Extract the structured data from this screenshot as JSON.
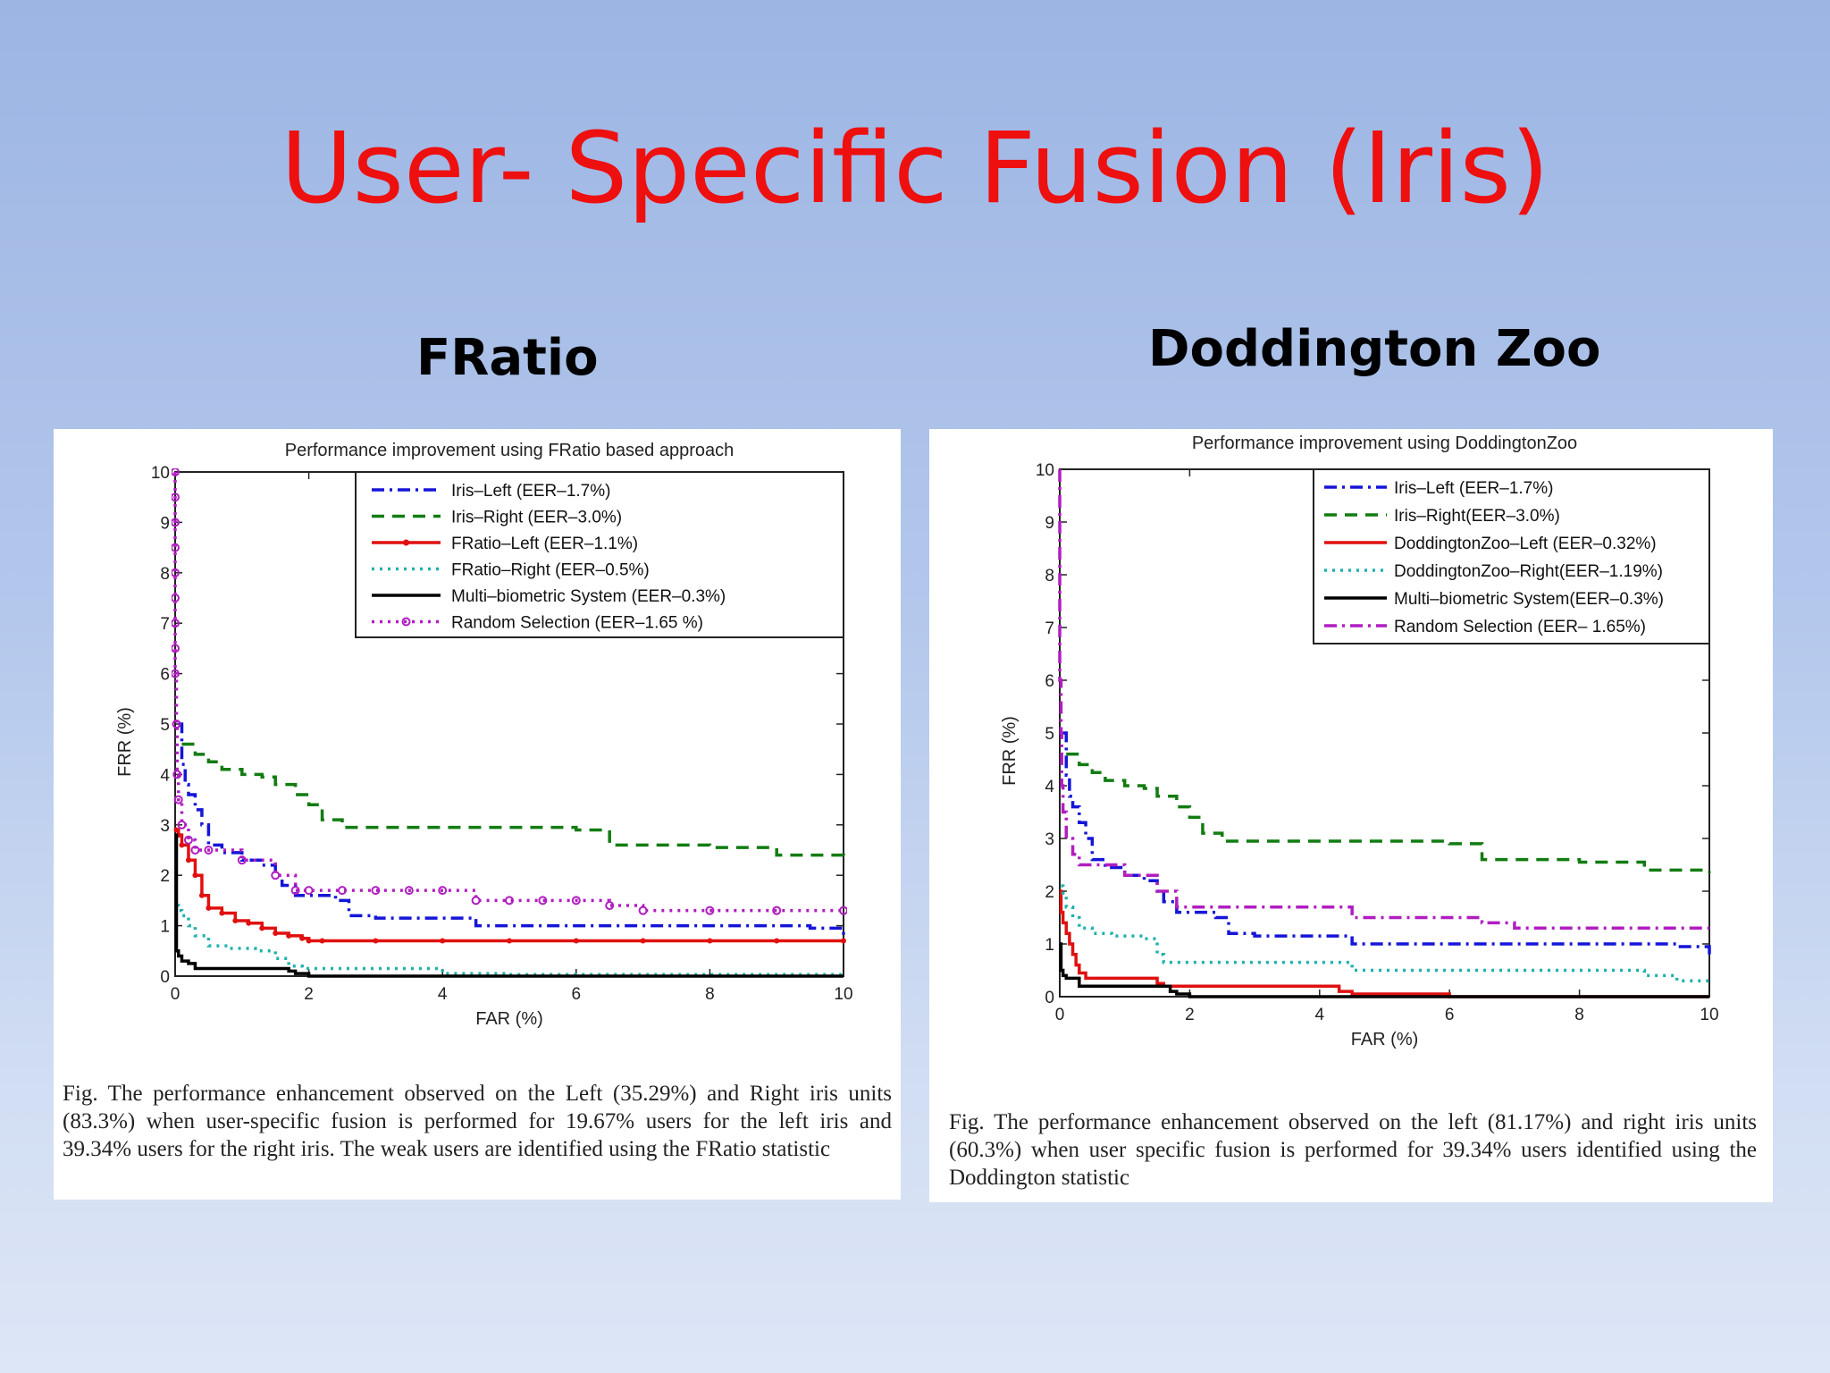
{
  "slide": {
    "title": "User- Specific Fusion (Iris)",
    "left_heading": "FRatio",
    "right_heading": "Doddington Zoo"
  },
  "captions": {
    "left": "Fig.     The performance enhancement observed on the Left (35.29%) and Right iris units (83.3%) when user-specific fusion is performed for 19.67% users for the left iris and 39.34% users for the right iris. The weak users are identified using the FRatio statistic",
    "right": "Fig.     The performance enhancement observed on the left (81.17%) and right iris units (60.3%) when user specific fusion is performed for 39.34% users identified using the Doddington statistic"
  },
  "chart_data": [
    {
      "type": "line",
      "title": "Performance improvement using FRatio based approach",
      "xlabel": "FAR (%)",
      "ylabel": "FRR (%)",
      "xlim": [
        0,
        10
      ],
      "ylim": [
        0,
        10
      ],
      "xticks": [
        "0",
        "2",
        "4",
        "6",
        "8",
        "10"
      ],
      "yticks": [
        "0",
        "1",
        "2",
        "3",
        "4",
        "5",
        "6",
        "7",
        "8",
        "9",
        "10"
      ],
      "grid": false,
      "legend_position": "top-right",
      "series": [
        {
          "name": "Iris–Left (EER–1.7%)",
          "color": "#1515d8",
          "dash": "dashdot",
          "marker": "none",
          "x": [
            0.05,
            0.1,
            0.15,
            0.2,
            0.3,
            0.4,
            0.5,
            0.7,
            1.0,
            1.2,
            1.3,
            1.5,
            1.6,
            1.8,
            2.0,
            2.2,
            2.4,
            2.6,
            3.0,
            3.5,
            4.0,
            4.5,
            5.0,
            6.0,
            7.0,
            8.0,
            9.0,
            9.5,
            10.0
          ],
          "y": [
            5.0,
            4.2,
            3.8,
            3.6,
            3.3,
            3.0,
            2.6,
            2.45,
            2.3,
            2.3,
            2.2,
            2.0,
            1.8,
            1.6,
            1.6,
            1.6,
            1.5,
            1.2,
            1.15,
            1.15,
            1.15,
            1.0,
            1.0,
            1.0,
            1.0,
            1.0,
            1.0,
            0.95,
            0.8
          ]
        },
        {
          "name": "Iris–Right (EER–3.0%)",
          "color": "#127c12",
          "dash": "dashed",
          "marker": "none",
          "x": [
            0.1,
            0.3,
            0.5,
            0.7,
            1.0,
            1.3,
            1.5,
            1.8,
            2.0,
            2.2,
            2.5,
            3.0,
            4.0,
            5.0,
            5.5,
            6.0,
            6.5,
            7.0,
            8.0,
            9.0,
            10.0
          ],
          "y": [
            4.6,
            4.4,
            4.25,
            4.1,
            4.0,
            3.95,
            3.8,
            3.6,
            3.4,
            3.1,
            2.95,
            2.95,
            2.95,
            2.95,
            2.95,
            2.9,
            2.6,
            2.6,
            2.55,
            2.4,
            2.35
          ]
        },
        {
          "name": "FRatio–Left (EER–1.1%)",
          "color": "#e01010",
          "dash": "solid",
          "marker": "dot",
          "x": [
            0.02,
            0.05,
            0.1,
            0.2,
            0.3,
            0.4,
            0.5,
            0.7,
            0.9,
            1.1,
            1.3,
            1.5,
            1.7,
            1.9,
            2.0,
            2.2,
            3.0,
            4.0,
            5.0,
            6.0,
            7.0,
            8.0,
            9.0,
            10.0
          ],
          "y": [
            2.9,
            2.8,
            2.6,
            2.3,
            2.0,
            1.6,
            1.35,
            1.25,
            1.1,
            1.05,
            0.95,
            0.85,
            0.8,
            0.75,
            0.7,
            0.7,
            0.7,
            0.7,
            0.7,
            0.7,
            0.7,
            0.7,
            0.7,
            0.7
          ]
        },
        {
          "name": "FRatio–Right (EER–0.5%)",
          "color": "#20b0b0",
          "dash": "dotted",
          "marker": "none",
          "x": [
            0.02,
            0.05,
            0.1,
            0.2,
            0.3,
            0.5,
            0.8,
            1.2,
            1.5,
            1.7,
            1.9,
            2.0,
            2.5,
            3.0,
            3.8,
            4.0,
            5.0,
            6.0,
            7.0,
            8.0,
            9.0,
            10.0
          ],
          "y": [
            1.4,
            1.3,
            1.2,
            1.0,
            0.8,
            0.6,
            0.55,
            0.5,
            0.35,
            0.2,
            0.15,
            0.15,
            0.15,
            0.15,
            0.15,
            0.05,
            0.03,
            0.03,
            0.03,
            0.03,
            0.03,
            0.03
          ]
        },
        {
          "name": "Multi–biometric System (EER–0.3%)",
          "color": "#000000",
          "dash": "solid",
          "marker": "none",
          "x": [
            0.0,
            0.02,
            0.05,
            0.1,
            0.2,
            0.3,
            0.5,
            1.0,
            1.5,
            1.7,
            1.8,
            2.0,
            4.0,
            6.0,
            8.0,
            10.0
          ],
          "y": [
            2.8,
            0.5,
            0.4,
            0.3,
            0.25,
            0.15,
            0.15,
            0.15,
            0.15,
            0.1,
            0.05,
            0.0,
            0.0,
            0.0,
            0.0,
            0.0
          ]
        },
        {
          "name": "Random Selection (EER–1.65 %)",
          "color": "#b01ec0",
          "dash": "dotted",
          "marker": "circle",
          "x": [
            0.0,
            0.0,
            0.0,
            0.0,
            0.0,
            0.0,
            0.0,
            0.0,
            0.0,
            0.02,
            0.03,
            0.05,
            0.1,
            0.2,
            0.3,
            0.5,
            1.0,
            1.5,
            1.8,
            2.0,
            2.5,
            3.0,
            3.5,
            4.0,
            4.5,
            5.0,
            5.5,
            6.0,
            6.5,
            7.0,
            8.0,
            9.0,
            10.0
          ],
          "y": [
            10.0,
            9.5,
            9.0,
            8.5,
            8.0,
            7.5,
            7.0,
            6.5,
            6.0,
            5.0,
            4.0,
            3.5,
            3.0,
            2.7,
            2.5,
            2.5,
            2.3,
            2.0,
            1.7,
            1.7,
            1.7,
            1.7,
            1.7,
            1.7,
            1.5,
            1.5,
            1.5,
            1.5,
            1.4,
            1.3,
            1.3,
            1.3,
            1.3
          ]
        }
      ]
    },
    {
      "type": "line",
      "title": "Performance improvement using DoddingtonZoo",
      "xlabel": "FAR (%)",
      "ylabel": "FRR (%)",
      "xlim": [
        0,
        10
      ],
      "ylim": [
        0,
        10
      ],
      "xticks": [
        "0",
        "2",
        "4",
        "6",
        "8",
        "10"
      ],
      "yticks": [
        "0",
        "1",
        "2",
        "3",
        "4",
        "5",
        "6",
        "7",
        "8",
        "9",
        "10"
      ],
      "grid": false,
      "legend_position": "top-right",
      "series": [
        {
          "name": "Iris–Left (EER–1.7%)",
          "color": "#1515d8",
          "dash": "dashdot",
          "marker": "none",
          "x": [
            0.05,
            0.1,
            0.15,
            0.2,
            0.3,
            0.4,
            0.5,
            0.7,
            1.0,
            1.2,
            1.3,
            1.5,
            1.6,
            1.8,
            2.0,
            2.2,
            2.4,
            2.6,
            3.0,
            3.5,
            4.0,
            4.5,
            5.0,
            6.0,
            7.0,
            8.0,
            9.0,
            9.5,
            10.0
          ],
          "y": [
            5.0,
            4.2,
            3.8,
            3.6,
            3.3,
            3.0,
            2.6,
            2.45,
            2.3,
            2.3,
            2.2,
            2.0,
            1.8,
            1.6,
            1.6,
            1.6,
            1.5,
            1.2,
            1.15,
            1.15,
            1.15,
            1.0,
            1.0,
            1.0,
            1.0,
            1.0,
            1.0,
            0.95,
            0.8
          ]
        },
        {
          "name": "Iris–Right(EER–3.0%)",
          "color": "#127c12",
          "dash": "dashed",
          "marker": "none",
          "x": [
            0.1,
            0.3,
            0.5,
            0.7,
            1.0,
            1.3,
            1.5,
            1.8,
            2.0,
            2.2,
            2.5,
            3.0,
            4.0,
            5.0,
            5.5,
            6.0,
            6.5,
            7.0,
            8.0,
            9.0,
            10.0
          ],
          "y": [
            4.6,
            4.4,
            4.25,
            4.1,
            4.0,
            3.95,
            3.8,
            3.6,
            3.4,
            3.1,
            2.95,
            2.95,
            2.95,
            2.95,
            2.95,
            2.9,
            2.6,
            2.6,
            2.55,
            2.4,
            2.35
          ]
        },
        {
          "name": "DoddingtonZoo–Left (EER–0.32%)",
          "color": "#e01010",
          "dash": "solid",
          "marker": "none",
          "x": [
            0.0,
            0.02,
            0.05,
            0.1,
            0.15,
            0.2,
            0.25,
            0.3,
            0.4,
            1.0,
            1.5,
            1.6,
            2.0,
            3.0,
            4.0,
            4.3,
            4.5,
            6.0,
            8.0,
            10.0
          ],
          "y": [
            2.0,
            1.6,
            1.4,
            1.2,
            1.0,
            0.8,
            0.6,
            0.45,
            0.35,
            0.35,
            0.25,
            0.2,
            0.2,
            0.2,
            0.2,
            0.1,
            0.05,
            0.0,
            0.0,
            0.0
          ]
        },
        {
          "name": "DoddingtonZoo–Right(EER–1.19%)",
          "color": "#20b0b0",
          "dash": "dotted",
          "marker": "none",
          "x": [
            0.02,
            0.05,
            0.1,
            0.2,
            0.3,
            0.5,
            0.8,
            1.0,
            1.3,
            1.5,
            1.6,
            2.0,
            3.0,
            4.0,
            4.5,
            5.0,
            6.0,
            7.0,
            8.0,
            9.0,
            9.5,
            10.0
          ],
          "y": [
            2.1,
            1.9,
            1.7,
            1.5,
            1.3,
            1.2,
            1.15,
            1.15,
            1.1,
            0.8,
            0.65,
            0.65,
            0.65,
            0.65,
            0.5,
            0.5,
            0.5,
            0.5,
            0.5,
            0.4,
            0.3,
            0.3
          ]
        },
        {
          "name": "Multi–biometric System(EER–0.3%)",
          "color": "#000000",
          "dash": "solid",
          "marker": "none",
          "x": [
            0.0,
            0.02,
            0.05,
            0.1,
            0.2,
            0.3,
            1.5,
            1.7,
            1.8,
            2.0,
            4.0,
            6.0,
            8.0,
            10.0
          ],
          "y": [
            1.0,
            0.5,
            0.4,
            0.35,
            0.35,
            0.2,
            0.2,
            0.1,
            0.05,
            0.0,
            0.0,
            0.0,
            0.0,
            0.0
          ]
        },
        {
          "name": "Random Selection (EER– 1.65%)",
          "color": "#b01ec0",
          "dash": "dashdot",
          "marker": "none",
          "x": [
            0.0,
            0.0,
            0.0,
            0.02,
            0.03,
            0.05,
            0.1,
            0.2,
            0.3,
            0.5,
            1.0,
            1.5,
            1.8,
            2.0,
            2.5,
            3.0,
            3.5,
            4.0,
            4.5,
            5.0,
            5.5,
            6.0,
            6.5,
            7.0,
            8.0,
            9.0,
            10.0
          ],
          "y": [
            10.0,
            8.0,
            6.0,
            5.0,
            4.0,
            3.5,
            3.0,
            2.7,
            2.5,
            2.5,
            2.3,
            2.0,
            1.7,
            1.7,
            1.7,
            1.7,
            1.7,
            1.7,
            1.5,
            1.5,
            1.5,
            1.5,
            1.4,
            1.3,
            1.3,
            1.3,
            1.3
          ]
        }
      ]
    }
  ]
}
